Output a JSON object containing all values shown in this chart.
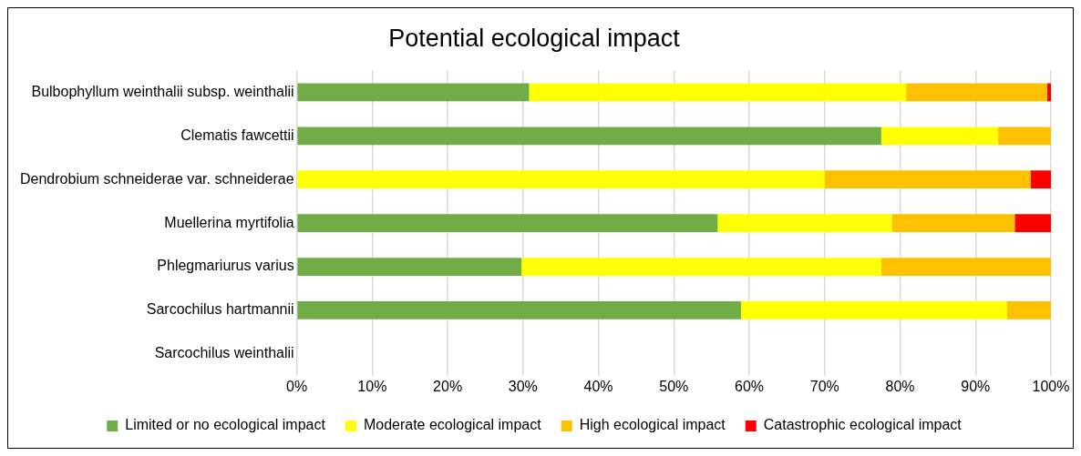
{
  "chart_data": {
    "type": "bar",
    "title": "Potential ecological impact",
    "orientation": "horizontal",
    "stacked": true,
    "categories": [
      "Bulbophyllum weinthalii subsp. weinthalii",
      "Clematis fawcettii",
      "Dendrobium schneiderae var. schneiderae",
      "Muellerina myrtifolia",
      "Phlegmariurus varius",
      "Sarcochilus hartmannii",
      "Sarcochilus weinthalii"
    ],
    "series": [
      {
        "name": "Limited or no ecological impact",
        "color": "#70ad47",
        "values": [
          30.8,
          77.5,
          0,
          55.8,
          29.8,
          58.9,
          0
        ]
      },
      {
        "name": "Moderate ecological impact",
        "color": "#ffff00",
        "values": [
          50.0,
          15.5,
          70.0,
          23.1,
          47.7,
          35.3,
          0
        ]
      },
      {
        "name": "High ecological impact",
        "color": "#ffc000",
        "values": [
          18.7,
          7.0,
          27.3,
          16.3,
          22.5,
          5.8,
          0
        ]
      },
      {
        "name": "Catastrophic ecological impact",
        "color": "#ff0000",
        "values": [
          0.5,
          0,
          2.7,
          4.8,
          0,
          0,
          0
        ]
      }
    ],
    "xlim": [
      0,
      100
    ],
    "xticks": [
      {
        "value": 0,
        "label": "0%"
      },
      {
        "value": 10,
        "label": "10%"
      },
      {
        "value": 20,
        "label": "20%"
      },
      {
        "value": 30,
        "label": "30%"
      },
      {
        "value": 40,
        "label": "40%"
      },
      {
        "value": 50,
        "label": "50%"
      },
      {
        "value": 60,
        "label": "60%"
      },
      {
        "value": 70,
        "label": "70%"
      },
      {
        "value": 80,
        "label": "80%"
      },
      {
        "value": 90,
        "label": "90%"
      },
      {
        "value": 100,
        "label": "100%"
      }
    ],
    "grid": "x",
    "legend": "bottom"
  }
}
